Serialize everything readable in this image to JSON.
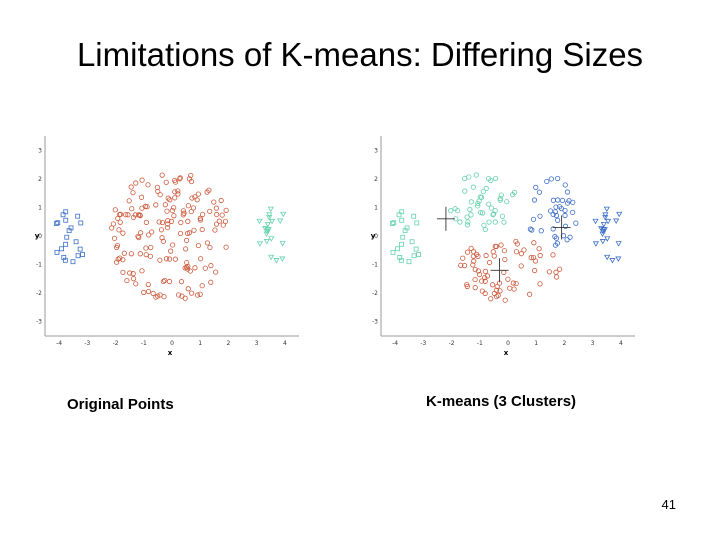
{
  "slide": {
    "title": "Limitations of K-means: Differing Sizes",
    "page_number": "41"
  },
  "colors": {
    "red": "#cd5a3c",
    "blue": "#3c6ec8",
    "green": "#64d2aa"
  },
  "chart_data": [
    {
      "id": "original",
      "type": "scatter",
      "caption": "Original Points",
      "xlabel": "x",
      "ylabel": "y",
      "xlim": [
        -4.5,
        4.5
      ],
      "ylim": [
        -3.5,
        3.5
      ],
      "x_ticks": [
        "-4",
        "-3",
        "-2",
        "-1",
        "0",
        "1",
        "2",
        "3",
        "4"
      ],
      "y_ticks": [
        "3",
        "2",
        "1",
        "0",
        "-1",
        "-2",
        "-3"
      ],
      "groups": [
        {
          "name": "small-left",
          "marker": "square",
          "color": "blue",
          "cx": -3.6,
          "cy": 0.0,
          "rx": 0.6,
          "ry": 1.0,
          "count": 20,
          "seed": 11
        },
        {
          "name": "large-center",
          "marker": "circle",
          "color": "red",
          "cx": 0.0,
          "cy": 0.0,
          "rx": 2.2,
          "ry": 2.3,
          "count": 165,
          "seed": 23
        },
        {
          "name": "small-right",
          "marker": "triangle",
          "color": "green",
          "cx": 3.6,
          "cy": 0.0,
          "rx": 0.6,
          "ry": 1.0,
          "count": 20,
          "seed": 37
        }
      ],
      "centroids": []
    },
    {
      "id": "kmeans",
      "type": "scatter",
      "caption": "K-means (3 Clusters)",
      "xlabel": "x",
      "ylabel": "y",
      "xlim": [
        -4.5,
        4.5
      ],
      "ylim": [
        -3.5,
        3.5
      ],
      "x_ticks": [
        "-4",
        "-3",
        "-2",
        "-1",
        "0",
        "1",
        "2",
        "3",
        "4"
      ],
      "y_ticks": [
        "3",
        "2",
        "1",
        "0",
        "-1",
        "-2",
        "-3"
      ],
      "groups": [
        {
          "name": "cluster-green-left",
          "marker": "square",
          "color": "green",
          "cx": -3.6,
          "cy": 0.0,
          "rx": 0.6,
          "ry": 1.0,
          "count": 20,
          "seed": 11
        },
        {
          "name": "cluster-green-upper",
          "marker": "circle",
          "color": "green",
          "cx": -0.9,
          "cy": 1.2,
          "rx": 1.3,
          "ry": 1.0,
          "count": 45,
          "seed": 51
        },
        {
          "name": "cluster-red-lower",
          "marker": "circle",
          "color": "red",
          "cx": 0.0,
          "cy": -1.2,
          "rx": 1.9,
          "ry": 1.1,
          "count": 70,
          "seed": 63
        },
        {
          "name": "cluster-blue-right",
          "marker": "circle",
          "color": "blue",
          "cx": 1.6,
          "cy": 0.8,
          "rx": 0.9,
          "ry": 1.3,
          "count": 40,
          "seed": 77
        },
        {
          "name": "cluster-blue-far",
          "marker": "triangle",
          "color": "blue",
          "cx": 3.6,
          "cy": 0.0,
          "rx": 0.6,
          "ry": 1.0,
          "count": 20,
          "seed": 37
        }
      ],
      "centroids": [
        [
          -2.2,
          0.6
        ],
        [
          -0.3,
          -1.2
        ],
        [
          1.9,
          0.3
        ]
      ]
    }
  ]
}
